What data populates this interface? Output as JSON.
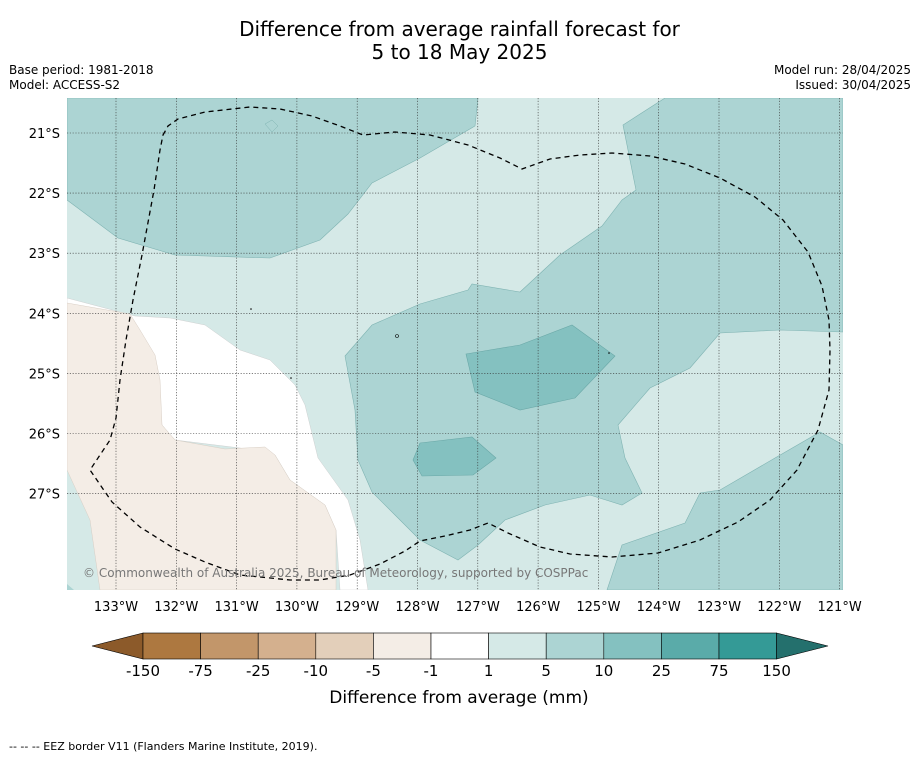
{
  "header": {
    "title_line1": "Difference from average rainfall forecast for",
    "title_line2": "5 to 18 May 2025",
    "base_period": "Base period: 1981-2018",
    "model": "Model: ACCESS-S2",
    "model_run": "Model run: 28/04/2025",
    "issued": "Issued: 30/04/2025"
  },
  "map": {
    "lat_labels": [
      "21°S",
      "22°S",
      "23°S",
      "24°S",
      "25°S",
      "26°S",
      "27°S"
    ],
    "lon_labels": [
      "133°W",
      "132°W",
      "131°W",
      "130°W",
      "129°W",
      "128°W",
      "127°W",
      "126°W",
      "125°W",
      "124°W",
      "123°W",
      "122°W",
      "121°W"
    ],
    "copyright": "© Commonwealth of Australia 2025, Bureau of Meteorology, supported by COSPPac"
  },
  "colorbar": {
    "ticks": [
      "-150",
      "-75",
      "-25",
      "-10",
      "-5",
      "-1",
      "1",
      "5",
      "10",
      "25",
      "75",
      "150"
    ],
    "label": "Difference from average (mm)",
    "colors": [
      "#8c5a2a",
      "#ad7840",
      "#c2966a",
      "#d4b08e",
      "#e3cfba",
      "#f4ede6",
      "#ffffff",
      "#d5e9e7",
      "#acd4d3",
      "#84c1c0",
      "#5aaba9",
      "#349a96",
      "#24706d"
    ]
  },
  "footer": {
    "legend_text": "--  --  -- EEZ border V11 (Flanders Marine Institute, 2019)."
  }
}
